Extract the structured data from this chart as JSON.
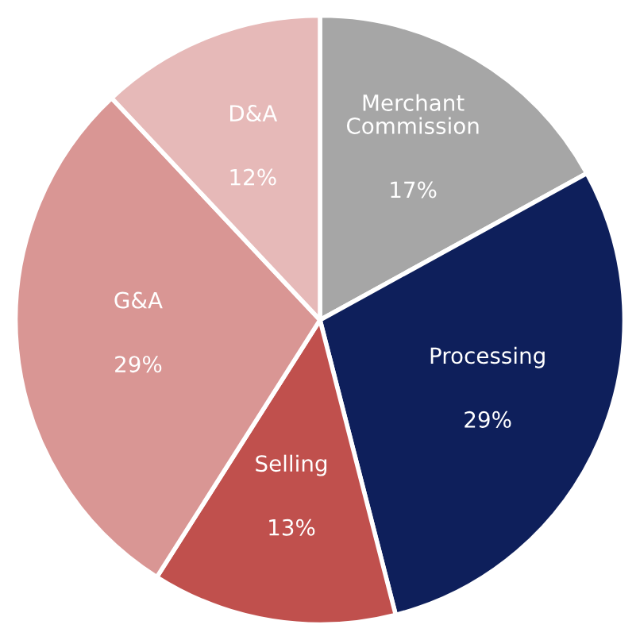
{
  "chart_data": {
    "type": "pie",
    "categories": [
      "Merchant Commission",
      "Processing",
      "Selling",
      "G&A",
      "D&A"
    ],
    "values": [
      17,
      29,
      13,
      29,
      12
    ],
    "value_labels": [
      "17%",
      "29%",
      "13%",
      "29%",
      "12%"
    ],
    "colors": [
      "#a6a6a6",
      "#0e1f5b",
      "#c0504d",
      "#d99694",
      "#e6b9b8"
    ],
    "legend": false
  }
}
